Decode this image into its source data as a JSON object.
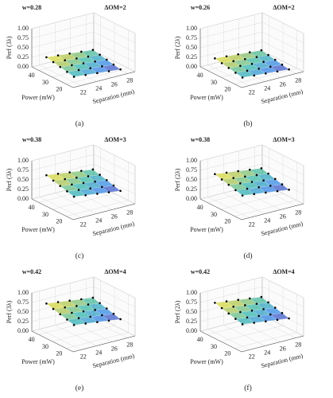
{
  "chart_data": [
    {
      "type": "surface",
      "title_left": "w=0.28",
      "title_right": "ΔOM=2",
      "label": "(a)",
      "xlabel": "Separation (mm)",
      "ylabel": "Power (mW)",
      "zlabel": "Perf (3λ)",
      "x": [
        22,
        23.5,
        25,
        26.5,
        28
      ],
      "y": [
        20,
        25,
        30,
        35,
        40
      ],
      "z": [
        [
          0.14,
          0.11,
          0.08,
          0.05,
          0.02
        ],
        [
          0.178,
          0.148,
          0.118,
          0.088,
          0.058
        ],
        [
          0.215,
          0.185,
          0.155,
          0.125,
          0.095
        ],
        [
          0.253,
          0.223,
          0.193,
          0.163,
          0.133
        ],
        [
          0.29,
          0.26,
          0.23,
          0.2,
          0.17
        ]
      ],
      "xlim": [
        21,
        29
      ],
      "xticks": [
        22,
        24,
        26,
        28
      ],
      "ylim": [
        15,
        45
      ],
      "yticks": [
        20,
        30,
        40
      ],
      "zlim": [
        0,
        1
      ],
      "zticks": [
        {
          "value": 0,
          "label": "0.00"
        },
        {
          "value": 0.25,
          "label": "0.25"
        },
        {
          "value": 0.5,
          "label": "0.50"
        },
        {
          "value": 0.75,
          "label": "0.75"
        },
        {
          "value": 1,
          "label": "1.00"
        }
      ],
      "grid": true
    },
    {
      "type": "surface",
      "title_left": "w=0.26",
      "title_right": "ΔOM=2",
      "label": "(b)",
      "xlabel": "Separation (mm)",
      "ylabel": "Power (mW)",
      "zlabel": "Perf (2λ)",
      "x": [
        22,
        23.5,
        25,
        26.5,
        28
      ],
      "y": [
        20,
        25,
        30,
        35,
        40
      ],
      "z": [
        [
          0.12,
          0.095,
          0.07,
          0.045,
          0.02
        ],
        [
          0.155,
          0.13,
          0.105,
          0.08,
          0.055
        ],
        [
          0.19,
          0.165,
          0.14,
          0.115,
          0.09
        ],
        [
          0.225,
          0.2,
          0.175,
          0.15,
          0.125
        ],
        [
          0.26,
          0.235,
          0.21,
          0.185,
          0.16
        ]
      ],
      "xlim": [
        21,
        29
      ],
      "xticks": [
        22,
        24,
        26,
        28
      ],
      "ylim": [
        15,
        45
      ],
      "yticks": [
        20,
        30,
        40
      ],
      "zlim": [
        0,
        1
      ],
      "zticks": [
        {
          "value": 0,
          "label": "0.00"
        },
        {
          "value": 0.25,
          "label": "0.25"
        },
        {
          "value": 0.5,
          "label": "0.50"
        },
        {
          "value": 0.75,
          "label": "0.75"
        },
        {
          "value": 1,
          "label": "1.00"
        }
      ],
      "grid": true
    },
    {
      "type": "surface",
      "title_left": "w=0.38",
      "title_right": "ΔOM=3",
      "label": "(c)",
      "xlabel": "Separation (mm)",
      "ylabel": "Power (mW)",
      "zlabel": "Perf (3λ)",
      "x": [
        22,
        23.5,
        25,
        26.5,
        28
      ],
      "y": [
        20,
        25,
        30,
        35,
        40
      ],
      "z": [
        [
          0.46,
          0.42,
          0.38,
          0.34,
          0.3
        ],
        [
          0.51,
          0.47,
          0.43,
          0.39,
          0.35
        ],
        [
          0.56,
          0.52,
          0.48,
          0.44,
          0.4
        ],
        [
          0.61,
          0.57,
          0.53,
          0.49,
          0.45
        ],
        [
          0.66,
          0.62,
          0.58,
          0.54,
          0.5
        ]
      ],
      "xlim": [
        21,
        29
      ],
      "xticks": [
        22,
        24,
        26,
        28
      ],
      "ylim": [
        15,
        45
      ],
      "yticks": [
        20,
        30,
        40
      ],
      "zlim": [
        0,
        1
      ],
      "zticks": [
        {
          "value": 0,
          "label": "0.00"
        },
        {
          "value": 0.25,
          "label": "0.25"
        },
        {
          "value": 0.5,
          "label": "0.50"
        },
        {
          "value": 0.75,
          "label": "0.75"
        },
        {
          "value": 1,
          "label": "1.00"
        }
      ],
      "grid": true
    },
    {
      "type": "surface",
      "title_left": "w=0.38",
      "title_right": "ΔOM=3",
      "label": "(d)",
      "xlabel": "Separation (mm)",
      "ylabel": "Power (mW)",
      "zlabel": "Perf (2λ)",
      "x": [
        22,
        23.5,
        25,
        26.5,
        28
      ],
      "y": [
        20,
        25,
        30,
        35,
        40
      ],
      "z": [
        [
          0.49,
          0.45,
          0.41,
          0.37,
          0.33
        ],
        [
          0.54,
          0.5,
          0.46,
          0.42,
          0.38
        ],
        [
          0.59,
          0.55,
          0.51,
          0.47,
          0.43
        ],
        [
          0.64,
          0.6,
          0.56,
          0.52,
          0.48
        ],
        [
          0.69,
          0.65,
          0.61,
          0.57,
          0.53
        ]
      ],
      "xlim": [
        21,
        29
      ],
      "xticks": [
        22,
        24,
        26,
        28
      ],
      "ylim": [
        15,
        45
      ],
      "yticks": [
        20,
        30,
        40
      ],
      "zlim": [
        0,
        1
      ],
      "zticks": [
        {
          "value": 0,
          "label": "0.00"
        },
        {
          "value": 0.25,
          "label": "0.25"
        },
        {
          "value": 0.5,
          "label": "0.50"
        },
        {
          "value": 0.75,
          "label": "0.75"
        },
        {
          "value": 1,
          "label": "1.00"
        }
      ],
      "grid": true
    },
    {
      "type": "surface",
      "title_left": "w=0.42",
      "title_right": "ΔOM=4",
      "label": "(e)",
      "xlabel": "Separation (mm)",
      "ylabel": "Power (mW)",
      "zlabel": "Perf (3λ)",
      "x": [
        22,
        23.5,
        25,
        26.5,
        28
      ],
      "y": [
        20,
        25,
        30,
        35,
        40
      ],
      "z": [
        [
          0.56,
          0.52,
          0.48,
          0.44,
          0.4
        ],
        [
          0.61,
          0.57,
          0.53,
          0.49,
          0.45
        ],
        [
          0.66,
          0.62,
          0.58,
          0.54,
          0.5
        ],
        [
          0.71,
          0.67,
          0.63,
          0.59,
          0.55
        ],
        [
          0.76,
          0.72,
          0.68,
          0.64,
          0.6
        ]
      ],
      "xlim": [
        21,
        29
      ],
      "xticks": [
        22,
        24,
        26,
        28
      ],
      "ylim": [
        15,
        45
      ],
      "yticks": [
        20,
        30,
        40
      ],
      "zlim": [
        0,
        1
      ],
      "zticks": [
        {
          "value": 0,
          "label": "0.00"
        },
        {
          "value": 0.25,
          "label": "0.25"
        },
        {
          "value": 0.5,
          "label": "0.50"
        },
        {
          "value": 0.75,
          "label": "0.75"
        },
        {
          "value": 1,
          "label": "1.00"
        }
      ],
      "grid": true
    },
    {
      "type": "surface",
      "title_left": "w=0.42",
      "title_right": "ΔOM=4",
      "label": "(f)",
      "xlabel": "Separation (mm)",
      "ylabel": "Power (mW)",
      "zlabel": "Perf (2λ)",
      "x": [
        22,
        23.5,
        25,
        26.5,
        28
      ],
      "y": [
        20,
        25,
        30,
        35,
        40
      ],
      "z": [
        [
          0.58,
          0.54,
          0.5,
          0.46,
          0.42
        ],
        [
          0.63,
          0.59,
          0.55,
          0.51,
          0.47
        ],
        [
          0.68,
          0.64,
          0.6,
          0.56,
          0.52
        ],
        [
          0.73,
          0.69,
          0.65,
          0.61,
          0.57
        ],
        [
          0.78,
          0.74,
          0.7,
          0.66,
          0.62
        ]
      ],
      "xlim": [
        21,
        29
      ],
      "xticks": [
        22,
        24,
        26,
        28
      ],
      "ylim": [
        15,
        45
      ],
      "yticks": [
        20,
        30,
        40
      ],
      "zlim": [
        0,
        1
      ],
      "zticks": [
        {
          "value": 0,
          "label": "0.00"
        },
        {
          "value": 0.25,
          "label": "0.25"
        },
        {
          "value": 0.5,
          "label": "0.50"
        },
        {
          "value": 0.75,
          "label": "0.75"
        },
        {
          "value": 1,
          "label": "1.00"
        }
      ],
      "grid": true
    }
  ]
}
